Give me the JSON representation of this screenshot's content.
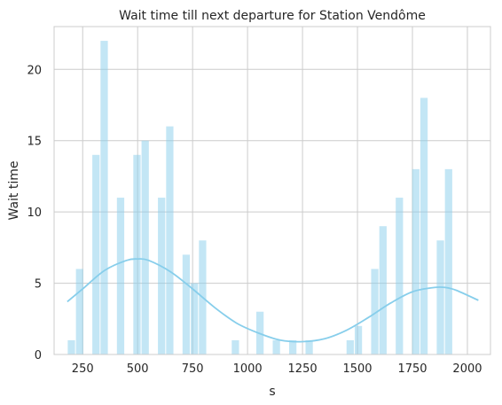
{
  "chart_data": {
    "type": "bar",
    "title": "Wait time till next departure for Station Vendôme",
    "xlabel": "s",
    "ylabel": "Wait time",
    "xlim": [
      120,
      2105
    ],
    "ylim": [
      0,
      23
    ],
    "xticks": [
      250,
      500,
      750,
      1000,
      1250,
      1500,
      1750,
      2000
    ],
    "yticks": [
      0,
      5,
      10,
      15,
      20
    ],
    "grid": true,
    "colors": {
      "bars": "#87ceeb",
      "curve": "#87ceeb",
      "grid": "#cccccc"
    },
    "bins": {
      "start": 180,
      "width": 37.3,
      "counts": [
        1,
        6,
        0,
        14,
        22,
        0,
        11,
        0,
        14,
        15,
        0,
        11,
        16,
        0,
        7,
        5,
        8,
        0,
        0,
        0,
        1,
        0,
        0,
        3,
        0,
        1,
        0,
        1,
        0,
        1,
        0,
        0,
        0,
        0,
        1,
        2,
        0,
        6,
        9,
        0,
        11,
        0,
        13,
        18,
        0,
        8,
        13
      ]
    },
    "kde_curve": {
      "x": [
        180,
        250,
        350,
        450,
        500,
        550,
        650,
        750,
        850,
        950,
        1050,
        1150,
        1250,
        1350,
        1450,
        1550,
        1650,
        1750,
        1850,
        1900,
        1950,
        2050
      ],
      "y": [
        3.7,
        4.6,
        5.9,
        6.6,
        6.7,
        6.6,
        5.8,
        4.6,
        3.3,
        2.2,
        1.5,
        1.0,
        0.9,
        1.1,
        1.7,
        2.6,
        3.6,
        4.4,
        4.7,
        4.7,
        4.5,
        3.8
      ]
    }
  }
}
